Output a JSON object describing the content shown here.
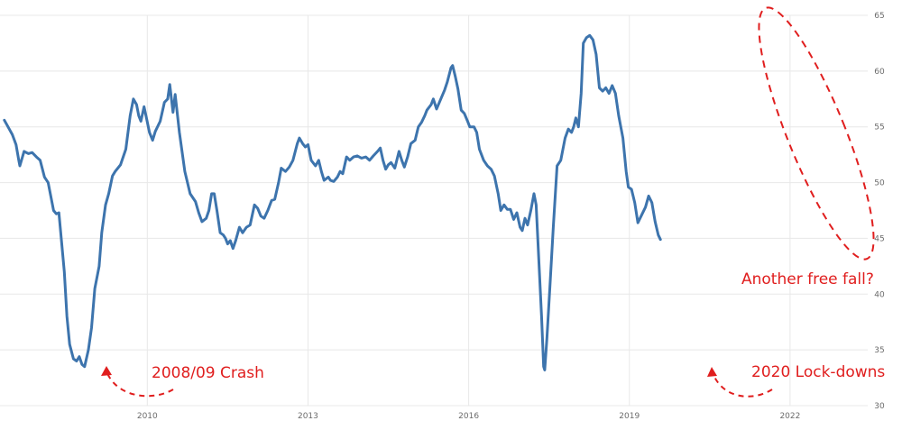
{
  "chart_data": {
    "type": "line",
    "title": "",
    "xlabel": "",
    "ylabel": "",
    "xlim": [
      2007.25,
      2023.45
    ],
    "ylim": [
      30,
      65
    ],
    "grid": true,
    "x_ticks": [
      {
        "value": 2010,
        "label": "2010"
      },
      {
        "value": 2013,
        "label": "2013"
      },
      {
        "value": 2016,
        "label": "2016"
      },
      {
        "value": 2019,
        "label": "2019"
      },
      {
        "value": 2022,
        "label": "2022"
      }
    ],
    "y_ticks": [
      30,
      35,
      40,
      45,
      50,
      55,
      60,
      65
    ],
    "line_color": "#3d74ad",
    "annotation_color": "#e01e1e",
    "series": [
      {
        "points": [
          [
            2007.33,
            55.6
          ],
          [
            2007.4,
            55.0
          ],
          [
            2007.48,
            54.3
          ],
          [
            2007.55,
            53.4
          ],
          [
            2007.6,
            52.0
          ],
          [
            2007.62,
            51.5
          ],
          [
            2007.7,
            52.8
          ],
          [
            2007.78,
            52.6
          ],
          [
            2007.85,
            52.7
          ],
          [
            2007.93,
            52.3
          ],
          [
            2008.0,
            52.0
          ],
          [
            2008.08,
            50.5
          ],
          [
            2008.15,
            50.0
          ],
          [
            2008.25,
            47.5
          ],
          [
            2008.3,
            47.2
          ],
          [
            2008.35,
            47.3
          ],
          [
            2008.45,
            42.0
          ],
          [
            2008.5,
            38.0
          ],
          [
            2008.55,
            35.5
          ],
          [
            2008.62,
            34.2
          ],
          [
            2008.68,
            34.0
          ],
          [
            2008.73,
            34.4
          ],
          [
            2008.78,
            33.7
          ],
          [
            2008.83,
            33.5
          ],
          [
            2008.9,
            35.0
          ],
          [
            2008.96,
            37.0
          ],
          [
            2009.02,
            40.5
          ],
          [
            2009.1,
            42.5
          ],
          [
            2009.15,
            45.5
          ],
          [
            2009.22,
            48.0
          ],
          [
            2009.28,
            49.0
          ],
          [
            2009.35,
            50.6
          ],
          [
            2009.4,
            51.0
          ],
          [
            2009.5,
            51.6
          ],
          [
            2009.6,
            53.0
          ],
          [
            2009.68,
            56.0
          ],
          [
            2009.74,
            57.5
          ],
          [
            2009.8,
            57.0
          ],
          [
            2009.84,
            56.0
          ],
          [
            2009.88,
            55.5
          ],
          [
            2009.94,
            56.8
          ],
          [
            2009.98,
            55.9
          ],
          [
            2010.04,
            54.5
          ],
          [
            2010.1,
            53.8
          ],
          [
            2010.15,
            54.6
          ],
          [
            2010.24,
            55.5
          ],
          [
            2010.32,
            57.2
          ],
          [
            2010.38,
            57.5
          ],
          [
            2010.42,
            58.8
          ],
          [
            2010.48,
            56.3
          ],
          [
            2010.52,
            57.9
          ],
          [
            2010.6,
            54.5
          ],
          [
            2010.7,
            51.0
          ],
          [
            2010.8,
            49.0
          ],
          [
            2010.9,
            48.3
          ],
          [
            2010.96,
            47.3
          ],
          [
            2011.02,
            46.5
          ],
          [
            2011.1,
            46.8
          ],
          [
            2011.15,
            47.5
          ],
          [
            2011.2,
            49.0
          ],
          [
            2011.25,
            49.0
          ],
          [
            2011.3,
            47.5
          ],
          [
            2011.36,
            45.5
          ],
          [
            2011.42,
            45.3
          ],
          [
            2011.46,
            45.0
          ],
          [
            2011.5,
            44.5
          ],
          [
            2011.55,
            44.8
          ],
          [
            2011.6,
            44.1
          ],
          [
            2011.65,
            44.8
          ],
          [
            2011.72,
            46.0
          ],
          [
            2011.78,
            45.5
          ],
          [
            2011.85,
            46.0
          ],
          [
            2011.92,
            46.2
          ],
          [
            2012.0,
            48.0
          ],
          [
            2012.06,
            47.7
          ],
          [
            2012.12,
            47.0
          ],
          [
            2012.18,
            46.8
          ],
          [
            2012.25,
            47.5
          ],
          [
            2012.32,
            48.4
          ],
          [
            2012.38,
            48.5
          ],
          [
            2012.45,
            50.0
          ],
          [
            2012.5,
            51.3
          ],
          [
            2012.58,
            51.0
          ],
          [
            2012.65,
            51.4
          ],
          [
            2012.72,
            52.0
          ],
          [
            2012.8,
            53.5
          ],
          [
            2012.84,
            54.0
          ],
          [
            2012.9,
            53.5
          ],
          [
            2012.95,
            53.2
          ],
          [
            2013.0,
            53.4
          ],
          [
            2013.06,
            52.0
          ],
          [
            2013.14,
            51.5
          ],
          [
            2013.2,
            52.0
          ],
          [
            2013.25,
            51.0
          ],
          [
            2013.3,
            50.2
          ],
          [
            2013.38,
            50.5
          ],
          [
            2013.42,
            50.2
          ],
          [
            2013.48,
            50.1
          ],
          [
            2013.55,
            50.5
          ],
          [
            2013.6,
            51.0
          ],
          [
            2013.65,
            50.8
          ],
          [
            2013.72,
            52.3
          ],
          [
            2013.78,
            52.0
          ],
          [
            2013.85,
            52.3
          ],
          [
            2013.92,
            52.4
          ],
          [
            2014.0,
            52.2
          ],
          [
            2014.08,
            52.3
          ],
          [
            2014.15,
            52.0
          ],
          [
            2014.22,
            52.4
          ],
          [
            2014.3,
            52.8
          ],
          [
            2014.35,
            53.1
          ],
          [
            2014.4,
            52.0
          ],
          [
            2014.45,
            51.2
          ],
          [
            2014.5,
            51.6
          ],
          [
            2014.55,
            51.8
          ],
          [
            2014.62,
            51.3
          ],
          [
            2014.7,
            52.8
          ],
          [
            2014.75,
            52.0
          ],
          [
            2014.8,
            51.4
          ],
          [
            2014.86,
            52.3
          ],
          [
            2014.92,
            53.5
          ],
          [
            2015.0,
            53.8
          ],
          [
            2015.06,
            55.0
          ],
          [
            2015.12,
            55.4
          ],
          [
            2015.18,
            56.0
          ],
          [
            2015.22,
            56.5
          ],
          [
            2015.3,
            57.0
          ],
          [
            2015.34,
            57.5
          ],
          [
            2015.4,
            56.6
          ],
          [
            2015.48,
            57.5
          ],
          [
            2015.55,
            58.3
          ],
          [
            2015.6,
            59.0
          ],
          [
            2015.67,
            60.3
          ],
          [
            2015.7,
            60.5
          ],
          [
            2015.75,
            59.5
          ],
          [
            2015.8,
            58.4
          ],
          [
            2015.86,
            56.5
          ],
          [
            2015.92,
            56.2
          ],
          [
            2015.98,
            55.5
          ],
          [
            2016.02,
            55.0
          ],
          [
            2016.1,
            55.0
          ],
          [
            2016.15,
            54.5
          ],
          [
            2016.2,
            53.0
          ],
          [
            2016.28,
            52.0
          ],
          [
            2016.35,
            51.5
          ],
          [
            2016.42,
            51.2
          ],
          [
            2016.48,
            50.6
          ],
          [
            2016.55,
            49.0
          ],
          [
            2016.6,
            47.5
          ],
          [
            2016.66,
            48.0
          ],
          [
            2016.72,
            47.6
          ],
          [
            2016.78,
            47.6
          ],
          [
            2016.84,
            46.7
          ],
          [
            2016.9,
            47.3
          ],
          [
            2016.96,
            46.0
          ],
          [
            2017.0,
            45.7
          ],
          [
            2017.05,
            46.8
          ],
          [
            2017.1,
            46.2
          ],
          [
            2017.16,
            47.5
          ],
          [
            2017.22,
            49.0
          ],
          [
            2017.26,
            48.0
          ],
          [
            2017.3,
            44.0
          ],
          [
            2017.36,
            38.0
          ],
          [
            2017.4,
            33.5
          ],
          [
            2017.42,
            33.2
          ],
          [
            2017.46,
            36.0
          ],
          [
            2017.52,
            41.0
          ],
          [
            2017.58,
            46.0
          ],
          [
            2017.65,
            51.5
          ],
          [
            2017.72,
            52.0
          ],
          [
            2017.8,
            54.0
          ],
          [
            2017.86,
            54.8
          ],
          [
            2017.92,
            54.5
          ],
          [
            2017.96,
            55.0
          ],
          [
            2018.0,
            55.8
          ],
          [
            2018.05,
            55.0
          ],
          [
            2018.1,
            58.0
          ],
          [
            2018.14,
            62.5
          ],
          [
            2018.2,
            63.0
          ],
          [
            2018.26,
            63.2
          ],
          [
            2018.32,
            62.8
          ],
          [
            2018.38,
            61.5
          ],
          [
            2018.44,
            58.5
          ],
          [
            2018.5,
            58.2
          ],
          [
            2018.56,
            58.5
          ],
          [
            2018.62,
            58.0
          ],
          [
            2018.68,
            58.7
          ],
          [
            2018.74,
            58.0
          ],
          [
            2018.8,
            56.0
          ],
          [
            2018.88,
            54.0
          ],
          [
            2018.94,
            51.0
          ],
          [
            2018.98,
            49.6
          ],
          [
            2019.04,
            49.4
          ],
          [
            2019.1,
            48.2
          ],
          [
            2019.16,
            46.4
          ],
          [
            2019.24,
            47.2
          ],
          [
            2019.3,
            47.8
          ],
          [
            2019.36,
            48.8
          ],
          [
            2019.42,
            48.2
          ],
          [
            2019.48,
            46.5
          ],
          [
            2019.54,
            45.3
          ],
          [
            2019.58,
            44.9
          ]
        ]
      }
    ],
    "annotations": [
      {
        "text": "2008/09 Crash"
      },
      {
        "text": "2020 Lock-downs"
      },
      {
        "text": "Another free fall?"
      }
    ]
  }
}
